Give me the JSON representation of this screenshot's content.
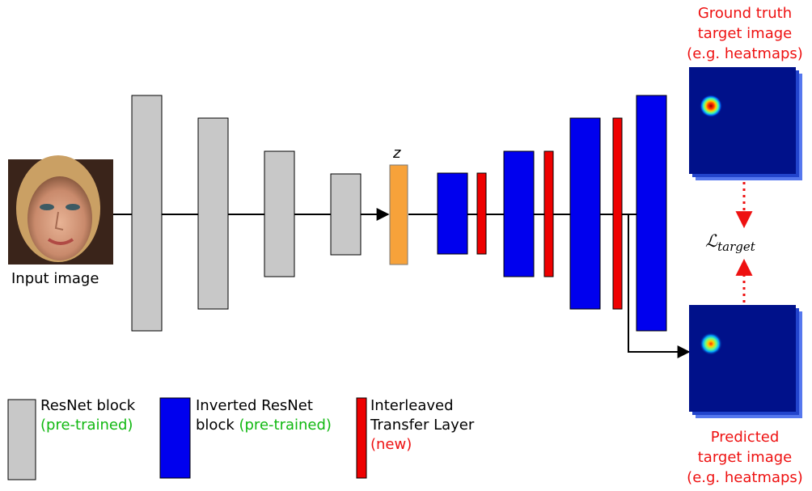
{
  "input_label": "Input image",
  "latent_label": "z",
  "loss_label": "target",
  "ground_truth": [
    "Ground truth",
    "target image",
    "(e.g. heatmaps)"
  ],
  "predicted": [
    "Predicted",
    "target image",
    "(e.g. heatmaps)"
  ],
  "legend": {
    "resnet": {
      "line1": "ResNet block",
      "line2": "(pre-trained)"
    },
    "inverted": {
      "line1": "Inverted ResNet",
      "line2_prefix": "block ",
      "line2_suffix": "(pre-trained)"
    },
    "transfer": {
      "line1": "Interleaved",
      "line2": "Transfer Layer",
      "line3": "(new)"
    }
  },
  "colors": {
    "resnet_block": "#c8c8c8",
    "inverted_block": "#0000ee",
    "transfer_layer": "#ee0000",
    "latent": "#f7a23a",
    "heatmap_bg": "#00118a",
    "annotation_red": "#ee1111",
    "annotation_green": "#11b811"
  }
}
